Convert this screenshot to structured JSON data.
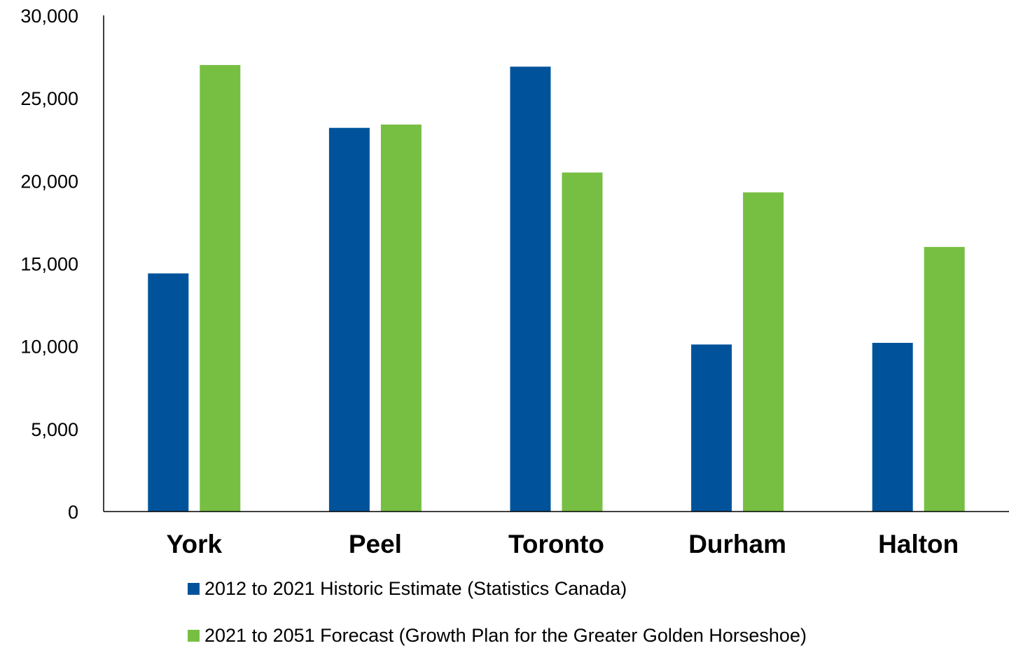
{
  "chart_data": {
    "type": "bar",
    "categories": [
      "York",
      "Peel",
      "Toronto",
      "Durham",
      "Halton"
    ],
    "series": [
      {
        "name": "2012 to 2021 Historic Estimate (Statistics Canada)",
        "values": [
          14400,
          23200,
          26900,
          10100,
          10200
        ],
        "color": "#00539B"
      },
      {
        "name": "2021 to 2051 Forecast (Growth Plan for the Greater Golden Horseshoe)",
        "values": [
          27000,
          23400,
          20500,
          19300,
          16000
        ],
        "color": "#77BF43"
      }
    ],
    "ylim": [
      0,
      30000
    ],
    "yticks": [
      "0",
      "5,000",
      "10,000",
      "15,000",
      "20,000",
      "25,000",
      "30,000"
    ],
    "ytick_values": [
      0,
      5000,
      10000,
      15000,
      20000,
      25000,
      30000
    ],
    "grid": false,
    "legend_position": "bottom",
    "title": "",
    "xlabel": "",
    "ylabel": ""
  }
}
